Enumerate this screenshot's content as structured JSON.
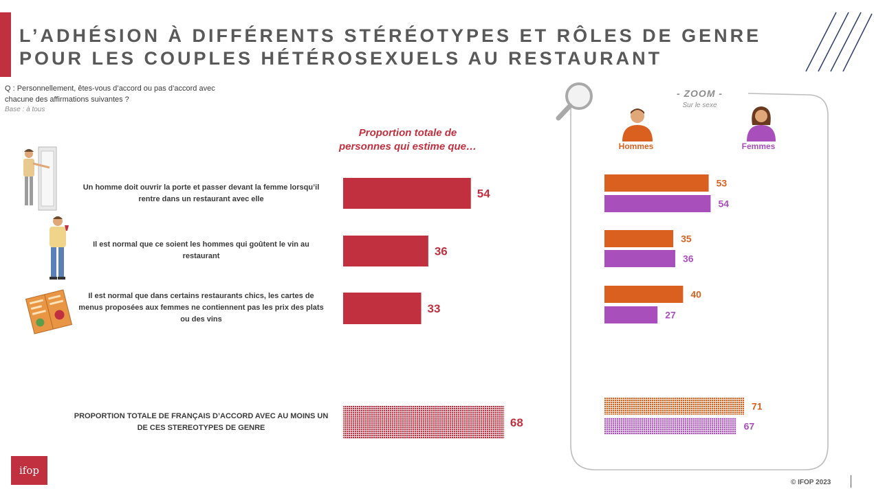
{
  "title_line1": "L’ADHÉSION À DIFFÉRENTS STÉRÉOTYPES ET RÔLES DE GENRE",
  "title_line2": "POUR LES COUPLES HÉTÉROSEXUELS AU RESTAURANT",
  "question_line1": "Q : Personnellement, êtes-vous d’accord ou pas d’accord avec",
  "question_line2": "chacune des affirmations suivantes ?",
  "base": "Base : à tous",
  "column_header_line1": "Proportion totale de",
  "column_header_line2": "personnes qui estime que…",
  "zoom_title": "- ZOOM -",
  "zoom_subtitle": "Sur le sexe",
  "hommes_label": "Hommes",
  "femmes_label": "Femmes",
  "logo_text": "ifop",
  "copyright": "© IFOP 2023",
  "colors": {
    "total": "#c0303f",
    "hommes": "#d9601f",
    "femmes": "#a84fbc",
    "accent": "#c0303f"
  },
  "chart_data": [
    {
      "type": "bar",
      "orientation": "horizontal",
      "categories": [
        [
          "Un homme doit ouvrir la porte et passer devant la femme lorsqu’il",
          "rentre dans un restaurant avec elle"
        ],
        [
          "Il est normal que ce soient les hommes qui goûtent le vin au",
          "restaurant"
        ],
        [
          "Il est normal que dans certains restaurants chics, les cartes de",
          "menus proposées aux femmes ne contiennent pas les prix des plats",
          "ou des vins"
        ],
        [
          "PROPORTION TOTALE DE FRANÇAIS D’ACCORD AVEC AU MOINS UN",
          "DE CES STEREOTYPES DE GENRE"
        ]
      ],
      "values": [
        54,
        36,
        33,
        68
      ],
      "patterned": [
        false,
        false,
        false,
        true
      ],
      "xlim": [
        0,
        100
      ]
    },
    {
      "type": "bar",
      "orientation": "horizontal",
      "series": [
        {
          "name": "Hommes",
          "values": [
            53,
            35,
            40,
            71
          ]
        },
        {
          "name": "Femmes",
          "values": [
            54,
            36,
            27,
            67
          ]
        }
      ],
      "xlim": [
        0,
        100
      ]
    }
  ]
}
